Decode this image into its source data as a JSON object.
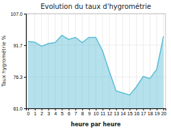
{
  "chart_data": {
    "type": "area",
    "title": "Evolution du taux d'hygrométrie",
    "xlabel": "heure par heure",
    "ylabel": "Taux hygrométrie %",
    "x": [
      0,
      1,
      2,
      3,
      4,
      5,
      6,
      7,
      8,
      9,
      10,
      11,
      12,
      13,
      14,
      15,
      16,
      17,
      18,
      19,
      20
    ],
    "values": [
      93.5,
      93.2,
      91.2,
      92.5,
      93.0,
      96.5,
      94.5,
      95.5,
      93.0,
      95.5,
      95.5,
      89.0,
      79.0,
      69.5,
      68.5,
      67.5,
      71.5,
      76.5,
      75.5,
      80.0,
      96.0
    ],
    "color": "#5bbcd4",
    "xlim": [
      -0.3,
      20.3
    ],
    "xticks": [
      0,
      1,
      2,
      3,
      4,
      5,
      6,
      7,
      8,
      9,
      10,
      11,
      12,
      13,
      14,
      15,
      16,
      17,
      18,
      19,
      20
    ],
    "ylim": [
      61.0,
      107.0
    ],
    "yticks": [
      {
        "value": 61.0,
        "label": "61.0"
      },
      76.3,
      91.7,
      {
        "value": 107.0,
        "label": "107.0"
      }
    ],
    "grid": true
  }
}
